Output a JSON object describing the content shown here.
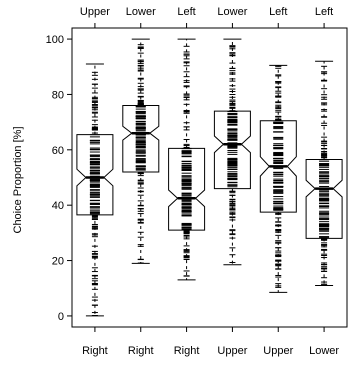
{
  "chart_data": {
    "type": "boxplot",
    "ylabel": "Choice Proportion [%]",
    "ylim": [
      -4,
      104
    ],
    "yticks": [
      0,
      20,
      40,
      60,
      80,
      100
    ],
    "top_labels": [
      "Upper",
      "Lower",
      "Left",
      "Lower",
      "Left",
      "Left"
    ],
    "bottom_labels": [
      "Right",
      "Right",
      "Right",
      "Upper",
      "Upper",
      "Lower"
    ],
    "boxes": [
      {
        "whisker_low": 0,
        "q1": 36.5,
        "median": 50,
        "q3": 65.5,
        "whisker_high": 91,
        "notch_low": 47,
        "notch_high": 53
      },
      {
        "whisker_low": 19,
        "q1": 52,
        "median": 66,
        "q3": 76,
        "whisker_high": 100,
        "notch_low": 63.5,
        "notch_high": 68.5
      },
      {
        "whisker_low": 13,
        "q1": 31,
        "median": 42.5,
        "q3": 60.5,
        "whisker_high": 100,
        "notch_low": 39.5,
        "notch_high": 45.5
      },
      {
        "whisker_low": 18.5,
        "q1": 46,
        "median": 62,
        "q3": 74,
        "whisker_high": 100,
        "notch_low": 59,
        "notch_high": 65
      },
      {
        "whisker_low": 8.5,
        "q1": 37.5,
        "median": 54,
        "q3": 70.5,
        "whisker_high": 90.5,
        "notch_low": 50.5,
        "notch_high": 57.5
      },
      {
        "whisker_low": 11,
        "q1": 28,
        "median": 46,
        "q3": 56.5,
        "whisker_high": 92,
        "notch_low": 43,
        "notch_high": 49
      }
    ]
  }
}
